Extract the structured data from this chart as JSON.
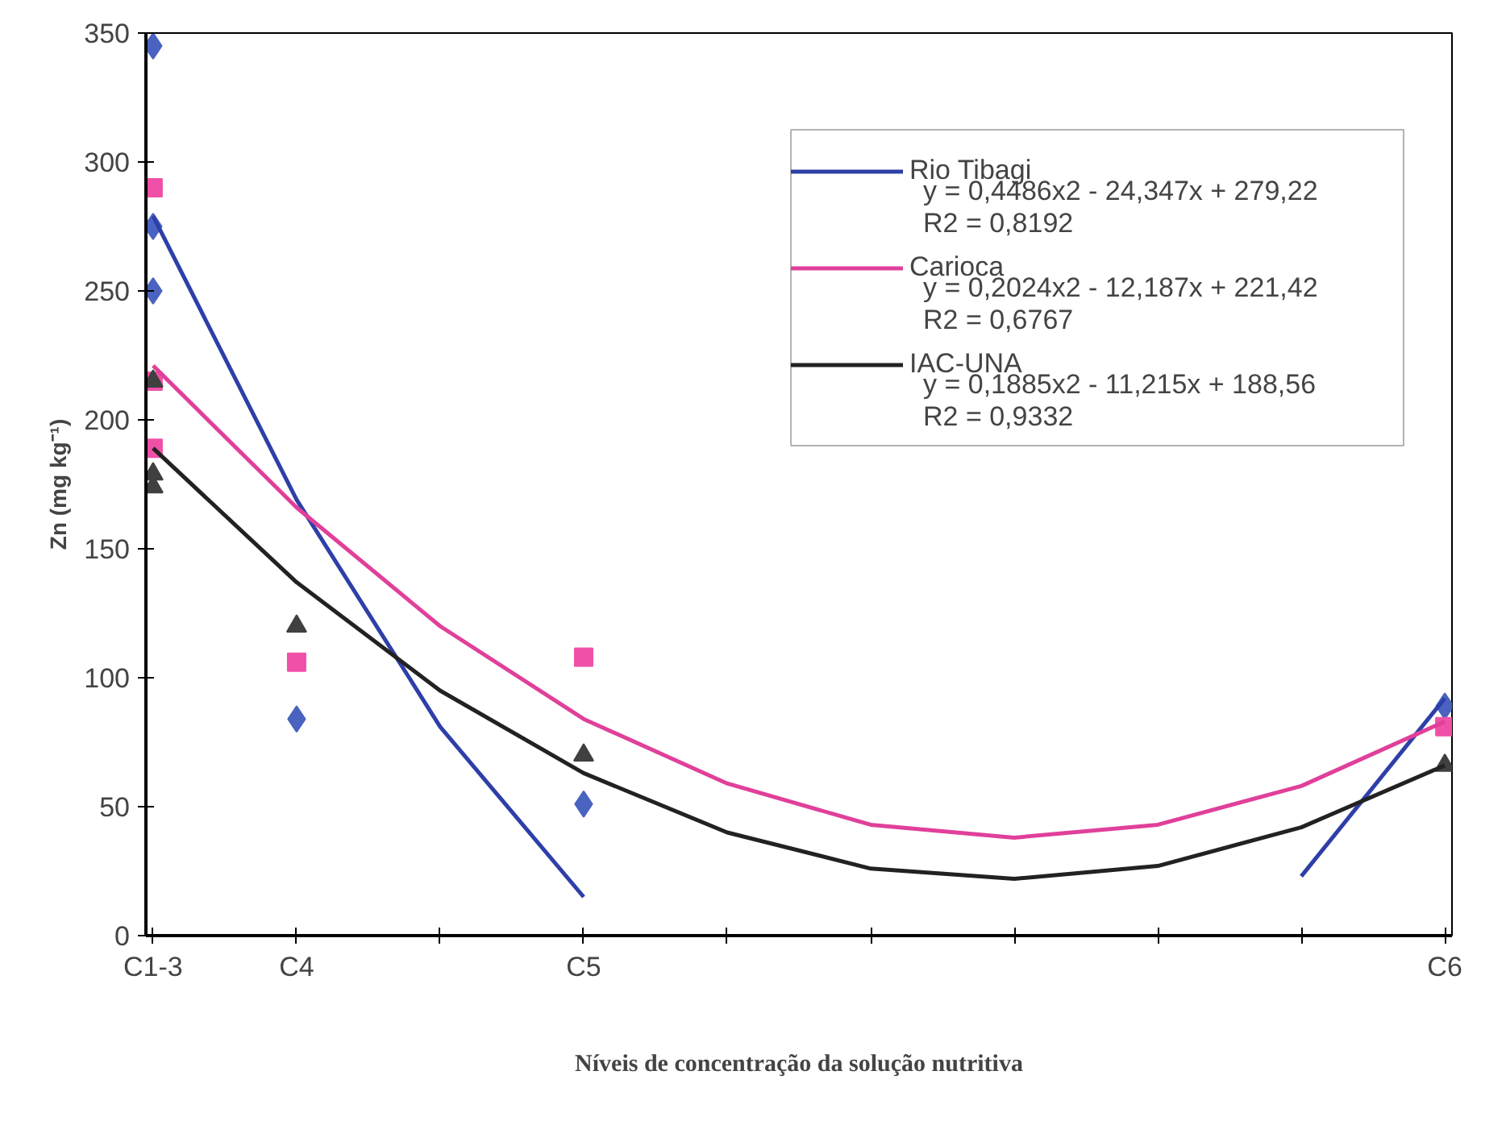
{
  "chart_data": {
    "type": "scatter",
    "xlabel": "Níveis de concentração da solução nutritiva",
    "ylabel": "Zn (mg kg⁻¹)",
    "categories": [
      "C1-3",
      "C4",
      null,
      "C5",
      null,
      null,
      null,
      null,
      null,
      "C6"
    ],
    "ylim": [
      0,
      350
    ],
    "yticks": [
      0,
      50,
      100,
      150,
      200,
      250,
      300,
      350
    ],
    "grid": false,
    "legend": "top right",
    "annotations": [
      "y = 0,4486x2 - 24,347x + 279,22",
      "R2 = 0,8192",
      "y = 0,2024x2 - 12,187x + 221,42",
      "R2 = 0,6767",
      "y = 0,1885x2 - 11,215x + 188,56",
      "R2 = 0,9332"
    ],
    "series": [
      {
        "marker": "diamond",
        "color": "#4a63c0",
        "values": [
          345,
          84,
          null,
          51,
          null,
          null,
          null,
          null,
          null,
          89
        ]
      },
      {
        "marker": "diamond",
        "color": "#4a63c0",
        "values": [
          250,
          null,
          null,
          null,
          null,
          null,
          null,
          null,
          null,
          null
        ]
      },
      {
        "marker": "diamond",
        "color": "#4a63c0",
        "values": [
          275,
          null,
          null,
          null,
          null,
          null,
          null,
          null,
          null,
          null
        ]
      },
      {
        "marker": "square",
        "color": "#f050a8",
        "values": [
          290,
          106,
          null,
          108,
          null,
          null,
          null,
          null,
          null,
          81
        ]
      },
      {
        "marker": "square",
        "color": "#f050a8",
        "values": [
          215,
          null,
          null,
          null,
          null,
          null,
          null,
          null,
          null,
          null
        ]
      },
      {
        "marker": "square",
        "color": "#f050a8",
        "values": [
          189,
          null,
          null,
          null,
          null,
          null,
          null,
          null,
          null,
          null
        ]
      },
      {
        "marker": "triangle",
        "color": "#404040",
        "values": [
          215,
          120,
          null,
          70,
          null,
          null,
          null,
          null,
          null,
          66
        ]
      },
      {
        "marker": "triangle",
        "color": "#404040",
        "values": [
          179,
          null,
          null,
          null,
          null,
          null,
          null,
          null,
          null,
          null
        ]
      },
      {
        "marker": "triangle",
        "color": "#404040",
        "values": [
          174,
          null,
          null,
          null,
          null,
          null,
          null,
          null,
          null,
          null
        ]
      },
      {
        "type": "line",
        "name": "Rio Tibagi",
        "color": "#2e3fa8",
        "values": [
          279,
          169,
          81,
          15,
          null,
          null,
          null,
          null,
          23,
          92
        ]
      },
      {
        "type": "line",
        "name": "Carioca",
        "color": "#e0409a",
        "values": [
          221,
          166,
          120,
          84,
          59,
          43,
          38,
          43,
          58,
          83
        ]
      },
      {
        "type": "line",
        "name": "IAC-UNA",
        "color": "#222222",
        "values": [
          189,
          137,
          95,
          63,
          40,
          26,
          22,
          27,
          42,
          66
        ]
      }
    ]
  }
}
